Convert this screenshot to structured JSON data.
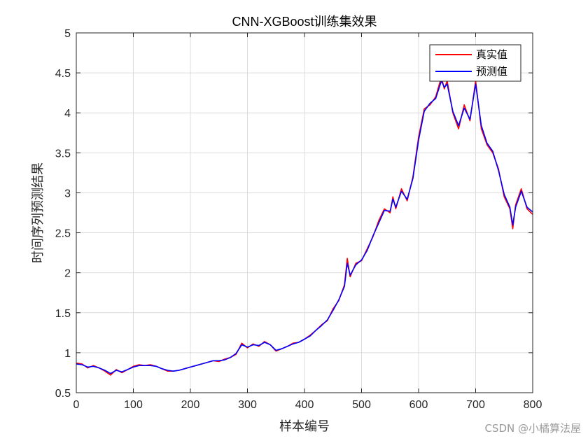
{
  "chart_data": {
    "type": "line",
    "title": "CNN-XGBoost训练集效果",
    "xlabel": "样本编号",
    "ylabel": "时间序列预测结果",
    "xlim": [
      0,
      800
    ],
    "ylim": [
      0.5,
      5
    ],
    "xticks": [
      0,
      100,
      200,
      300,
      400,
      500,
      600,
      700,
      800
    ],
    "yticks": [
      0.5,
      1,
      1.5,
      2,
      2.5,
      3,
      3.5,
      4,
      4.5,
      5
    ],
    "grid": true,
    "legend_position": "top-right",
    "series": [
      {
        "name": "真实值",
        "color": "#ff0000",
        "points": [
          [
            0,
            0.87
          ],
          [
            10,
            0.86
          ],
          [
            20,
            0.81
          ],
          [
            30,
            0.84
          ],
          [
            40,
            0.81
          ],
          [
            50,
            0.77
          ],
          [
            60,
            0.72
          ],
          [
            70,
            0.79
          ],
          [
            80,
            0.75
          ],
          [
            90,
            0.79
          ],
          [
            100,
            0.83
          ],
          [
            110,
            0.85
          ],
          [
            120,
            0.84
          ],
          [
            130,
            0.85
          ],
          [
            140,
            0.83
          ],
          [
            150,
            0.8
          ],
          [
            160,
            0.77
          ],
          [
            170,
            0.77
          ],
          [
            180,
            0.78
          ],
          [
            190,
            0.8
          ],
          [
            200,
            0.82
          ],
          [
            210,
            0.84
          ],
          [
            220,
            0.86
          ],
          [
            230,
            0.88
          ],
          [
            240,
            0.9
          ],
          [
            250,
            0.89
          ],
          [
            260,
            0.92
          ],
          [
            270,
            0.94
          ],
          [
            280,
            0.98
          ],
          [
            290,
            1.12
          ],
          [
            300,
            1.06
          ],
          [
            310,
            1.11
          ],
          [
            320,
            1.08
          ],
          [
            330,
            1.14
          ],
          [
            340,
            1.1
          ],
          [
            350,
            1.02
          ],
          [
            360,
            1.05
          ],
          [
            370,
            1.08
          ],
          [
            380,
            1.12
          ],
          [
            390,
            1.13
          ],
          [
            400,
            1.17
          ],
          [
            410,
            1.22
          ],
          [
            420,
            1.28
          ],
          [
            430,
            1.35
          ],
          [
            440,
            1.4
          ],
          [
            450,
            1.55
          ],
          [
            460,
            1.65
          ],
          [
            470,
            1.85
          ],
          [
            475,
            2.18
          ],
          [
            480,
            1.95
          ],
          [
            490,
            2.12
          ],
          [
            500,
            2.15
          ],
          [
            510,
            2.3
          ],
          [
            520,
            2.45
          ],
          [
            530,
            2.65
          ],
          [
            540,
            2.8
          ],
          [
            550,
            2.75
          ],
          [
            555,
            2.95
          ],
          [
            560,
            2.8
          ],
          [
            570,
            3.05
          ],
          [
            580,
            2.9
          ],
          [
            590,
            3.2
          ],
          [
            600,
            3.7
          ],
          [
            610,
            4.05
          ],
          [
            620,
            4.1
          ],
          [
            630,
            4.2
          ],
          [
            640,
            4.45
          ],
          [
            645,
            4.3
          ],
          [
            650,
            4.4
          ],
          [
            660,
            4.0
          ],
          [
            670,
            3.8
          ],
          [
            680,
            4.1
          ],
          [
            690,
            3.9
          ],
          [
            700,
            4.4
          ],
          [
            710,
            3.8
          ],
          [
            720,
            3.6
          ],
          [
            730,
            3.5
          ],
          [
            740,
            3.3
          ],
          [
            750,
            2.95
          ],
          [
            760,
            2.8
          ],
          [
            765,
            2.55
          ],
          [
            770,
            2.85
          ],
          [
            780,
            3.05
          ],
          [
            790,
            2.8
          ],
          [
            800,
            2.73
          ]
        ]
      },
      {
        "name": "预测值",
        "color": "#0000ff",
        "points": [
          [
            0,
            0.86
          ],
          [
            10,
            0.85
          ],
          [
            20,
            0.82
          ],
          [
            30,
            0.83
          ],
          [
            40,
            0.81
          ],
          [
            50,
            0.78
          ],
          [
            60,
            0.74
          ],
          [
            70,
            0.78
          ],
          [
            80,
            0.76
          ],
          [
            90,
            0.79
          ],
          [
            100,
            0.82
          ],
          [
            110,
            0.84
          ],
          [
            120,
            0.84
          ],
          [
            130,
            0.84
          ],
          [
            140,
            0.83
          ],
          [
            150,
            0.8
          ],
          [
            160,
            0.78
          ],
          [
            170,
            0.77
          ],
          [
            180,
            0.78
          ],
          [
            190,
            0.8
          ],
          [
            200,
            0.82
          ],
          [
            210,
            0.84
          ],
          [
            220,
            0.86
          ],
          [
            230,
            0.88
          ],
          [
            240,
            0.9
          ],
          [
            250,
            0.9
          ],
          [
            260,
            0.91
          ],
          [
            270,
            0.94
          ],
          [
            280,
            0.99
          ],
          [
            290,
            1.1
          ],
          [
            300,
            1.07
          ],
          [
            310,
            1.1
          ],
          [
            320,
            1.09
          ],
          [
            330,
            1.13
          ],
          [
            340,
            1.1
          ],
          [
            350,
            1.03
          ],
          [
            360,
            1.05
          ],
          [
            370,
            1.08
          ],
          [
            380,
            1.11
          ],
          [
            390,
            1.13
          ],
          [
            400,
            1.17
          ],
          [
            410,
            1.21
          ],
          [
            420,
            1.28
          ],
          [
            430,
            1.34
          ],
          [
            440,
            1.41
          ],
          [
            450,
            1.53
          ],
          [
            460,
            1.66
          ],
          [
            470,
            1.83
          ],
          [
            475,
            2.12
          ],
          [
            480,
            1.97
          ],
          [
            490,
            2.1
          ],
          [
            500,
            2.16
          ],
          [
            510,
            2.28
          ],
          [
            520,
            2.46
          ],
          [
            530,
            2.62
          ],
          [
            540,
            2.78
          ],
          [
            550,
            2.77
          ],
          [
            555,
            2.92
          ],
          [
            560,
            2.82
          ],
          [
            570,
            3.02
          ],
          [
            580,
            2.92
          ],
          [
            590,
            3.18
          ],
          [
            600,
            3.66
          ],
          [
            610,
            4.02
          ],
          [
            620,
            4.12
          ],
          [
            630,
            4.18
          ],
          [
            640,
            4.4
          ],
          [
            645,
            4.32
          ],
          [
            650,
            4.36
          ],
          [
            660,
            4.02
          ],
          [
            670,
            3.84
          ],
          [
            680,
            4.06
          ],
          [
            690,
            3.92
          ],
          [
            700,
            4.36
          ],
          [
            710,
            3.84
          ],
          [
            720,
            3.62
          ],
          [
            730,
            3.52
          ],
          [
            740,
            3.28
          ],
          [
            750,
            2.98
          ],
          [
            760,
            2.82
          ],
          [
            765,
            2.6
          ],
          [
            770,
            2.82
          ],
          [
            780,
            3.02
          ],
          [
            790,
            2.82
          ],
          [
            800,
            2.76
          ]
        ]
      }
    ]
  },
  "watermark": "CSDN @小橘算法屋"
}
